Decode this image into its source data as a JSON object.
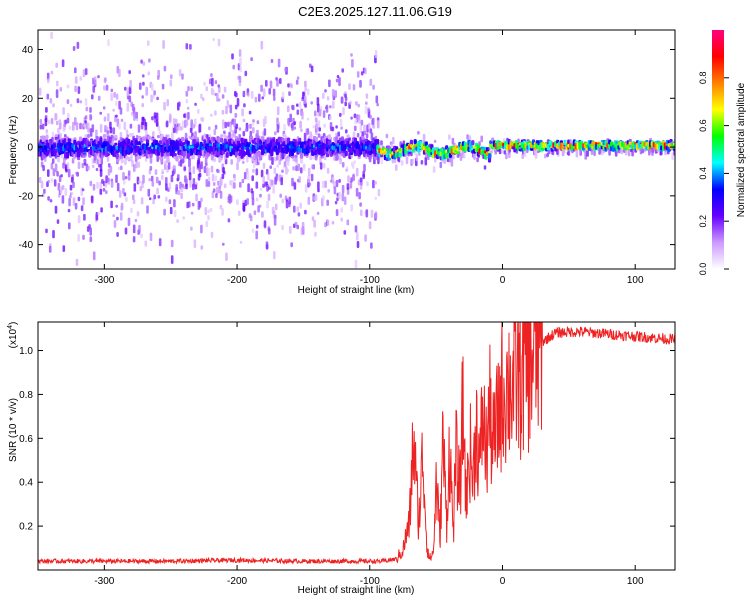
{
  "figure_title": "C2E3.2025.127.11.06.G19",
  "chart_data": [
    {
      "type": "heatmap",
      "xlabel": "Height of straight line (km)",
      "ylabel": "Frequency (Hz)",
      "xlim": [
        -350,
        130
      ],
      "ylim": [
        -50,
        48
      ],
      "x_ticks": [
        -300,
        -200,
        -100,
        0,
        100
      ],
      "x_tick_labels": [
        "-300",
        "-200",
        "-100",
        "0",
        "100"
      ],
      "y_ticks": [
        -40,
        -20,
        0,
        20,
        40
      ],
      "y_tick_labels": [
        "-40",
        "-20",
        "0",
        "20",
        "40"
      ],
      "segments": [
        {
          "x_from": -350,
          "x_to": -95,
          "center_freq_hz": 0,
          "core_halfwidth_hz": 6,
          "scatter_halfwidth_hz": 48,
          "max_amplitude": 0.45
        },
        {
          "x_from": -95,
          "x_to": -10,
          "center_freq_hz": -1,
          "core_halfwidth_hz": 3,
          "scatter_halfwidth_hz": 8,
          "max_amplitude": 0.95
        },
        {
          "x_from": -10,
          "x_to": 130,
          "center_freq_hz": 1,
          "core_halfwidth_hz": 2,
          "scatter_halfwidth_hz": 4,
          "max_amplitude": 1.0
        }
      ],
      "colorbar": {
        "label": "Normalized spectral amplitude",
        "range": [
          0,
          1
        ],
        "ticks": [
          0.0,
          0.2,
          0.4,
          0.6,
          0.8
        ],
        "tick_labels": [
          "0.0",
          "0.2",
          "0.4",
          "0.6",
          "0.8"
        ],
        "colors": [
          "#ffffff",
          "#cc99ff",
          "#6600ff",
          "#0000ff",
          "#00ffff",
          "#00ff00",
          "#ffff00",
          "#ff8000",
          "#ff0000",
          "#ff0080"
        ]
      }
    },
    {
      "type": "line",
      "xlabel": "Height of straight line (km)",
      "ylabel": "SNR (10 * v/v)",
      "ylabel_scale": "(x10",
      "ylabel_scale_exp": "4",
      "xlim": [
        -350,
        130
      ],
      "ylim": [
        0,
        1.13
      ],
      "x_ticks": [
        -300,
        -200,
        -100,
        0,
        100
      ],
      "x_tick_labels": [
        "-300",
        "-200",
        "-100",
        "0",
        "100"
      ],
      "y_ticks": [
        0.2,
        0.4,
        0.6,
        0.8,
        1.0
      ],
      "y_tick_labels": [
        "0.2",
        "0.4",
        "0.6",
        "0.8",
        "1.0"
      ],
      "series": [
        {
          "name": "SNR",
          "color": "#ee2222",
          "x": [
            -350,
            -300,
            -250,
            -200,
            -150,
            -110,
            -100,
            -90,
            -80,
            -75,
            -70,
            -67,
            -65,
            -63,
            -60,
            -57,
            -55,
            -52,
            -50,
            -47,
            -45,
            -42,
            -40,
            -37,
            -35,
            -32,
            -30,
            -27,
            -25,
            -22,
            -20,
            -17,
            -15,
            -12,
            -10,
            -7,
            -5,
            -2,
            0,
            5,
            10,
            15,
            20,
            25,
            30,
            35,
            40,
            50,
            60,
            70,
            80,
            90,
            100,
            110,
            120,
            130
          ],
          "values": [
            0.04,
            0.04,
            0.04,
            0.045,
            0.04,
            0.04,
            0.04,
            0.04,
            0.05,
            0.09,
            0.22,
            0.62,
            0.38,
            0.22,
            0.53,
            0.12,
            0.05,
            0.08,
            0.4,
            0.15,
            0.6,
            0.22,
            0.56,
            0.18,
            0.52,
            0.35,
            0.75,
            0.3,
            0.58,
            0.4,
            0.7,
            0.45,
            0.72,
            0.52,
            0.74,
            0.57,
            0.62,
            0.75,
            0.82,
            0.84,
            0.87,
            0.9,
            0.95,
            1.0,
            1.04,
            1.06,
            1.08,
            1.085,
            1.085,
            1.08,
            1.075,
            1.07,
            1.065,
            1.06,
            1.055,
            1.05
          ]
        }
      ]
    }
  ]
}
